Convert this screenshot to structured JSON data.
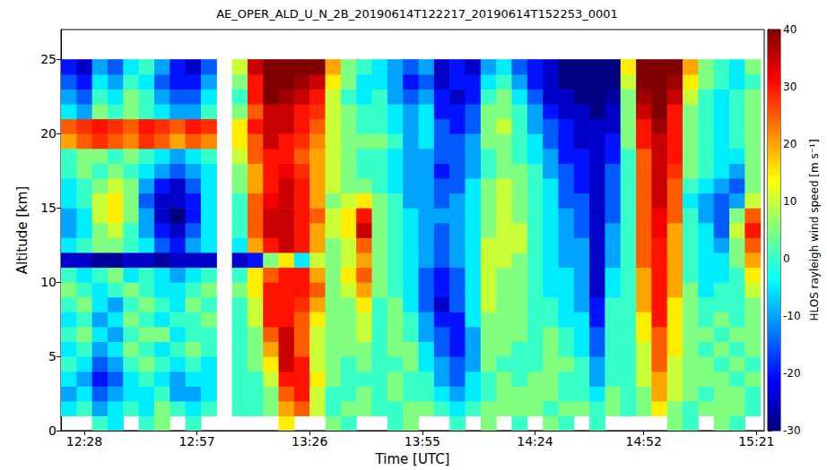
{
  "chart_data": {
    "type": "heatmap",
    "title": "AE_OPER_ALD_U_N_2B_20190614T122217_20190614T152253_0001",
    "x_label": "Time [UTC]",
    "y_label": "Altitude [km]",
    "xlim": [
      742,
      923
    ],
    "ylim": [
      0,
      27
    ],
    "xticks": [
      {
        "value": 748,
        "label": "12:28"
      },
      {
        "value": 777,
        "label": "12:57"
      },
      {
        "value": 806,
        "label": "13:26"
      },
      {
        "value": 835,
        "label": "13:55"
      },
      {
        "value": 864,
        "label": "14:24"
      },
      {
        "value": 892,
        "label": "14:52"
      },
      {
        "value": 921,
        "label": "15:21"
      }
    ],
    "yticks": [
      0,
      5,
      10,
      15,
      20,
      25
    ],
    "grid": false,
    "x_edges": [
      742,
      746,
      750,
      754,
      758,
      762,
      766,
      770,
      774,
      778,
      782,
      786,
      790,
      794,
      798,
      802,
      806,
      810,
      814,
      818,
      822,
      826,
      830,
      834,
      838,
      842,
      846,
      850,
      854,
      858,
      862,
      866,
      870,
      874,
      878,
      882,
      886,
      890,
      894,
      898,
      902,
      906,
      910,
      914,
      918,
      922
    ],
    "y_edges": [
      0,
      1,
      2,
      3,
      4,
      5,
      6,
      7,
      8,
      9,
      10,
      11,
      12,
      13,
      14,
      15,
      16,
      17,
      18,
      19,
      20,
      21,
      22,
      23,
      24,
      25
    ],
    "cells": [
      [
        null,
        null,
        0,
        -5,
        null,
        0,
        5,
        null,
        0,
        null,
        null,
        null,
        null,
        null,
        15,
        null,
        null,
        5,
        0,
        null,
        null,
        0,
        5,
        null,
        null,
        0,
        null,
        5,
        null,
        0,
        null,
        5,
        0,
        null,
        0,
        null,
        null,
        null,
        null,
        5,
        0,
        null,
        5,
        0,
        null
      ],
      [
        -5,
        0,
        -10,
        -5,
        0,
        -5,
        5,
        0,
        -5,
        0,
        null,
        0,
        0,
        5,
        20,
        25,
        10,
        0,
        5,
        5,
        0,
        0,
        5,
        5,
        0,
        -5,
        0,
        5,
        5,
        5,
        5,
        0,
        5,
        5,
        0,
        5,
        0,
        5,
        15,
        5,
        0,
        5,
        5,
        5,
        0
      ],
      [
        -10,
        -5,
        -15,
        -10,
        -5,
        -5,
        0,
        -10,
        -10,
        -5,
        null,
        0,
        0,
        5,
        25,
        30,
        10,
        0,
        0,
        5,
        0,
        5,
        0,
        0,
        -5,
        -10,
        -5,
        0,
        5,
        5,
        5,
        5,
        0,
        0,
        -5,
        5,
        0,
        5,
        20,
        10,
        5,
        0,
        5,
        5,
        0
      ],
      [
        -5,
        -10,
        -20,
        -15,
        -5,
        0,
        -5,
        -10,
        -5,
        -5,
        null,
        0,
        0,
        10,
        30,
        30,
        15,
        5,
        0,
        0,
        0,
        5,
        0,
        0,
        -10,
        -15,
        -5,
        0,
        5,
        0,
        5,
        5,
        0,
        0,
        -10,
        0,
        0,
        10,
        20,
        10,
        5,
        5,
        5,
        0,
        5
      ],
      [
        0,
        -5,
        -15,
        -10,
        0,
        5,
        0,
        -5,
        0,
        -5,
        null,
        0,
        5,
        15,
        35,
        30,
        10,
        5,
        0,
        5,
        0,
        0,
        5,
        -5,
        -10,
        -15,
        -10,
        5,
        0,
        0,
        0,
        5,
        5,
        0,
        -10,
        0,
        0,
        10,
        25,
        10,
        5,
        5,
        0,
        5,
        0
      ],
      [
        -5,
        0,
        -10,
        -5,
        5,
        0,
        -5,
        0,
        5,
        0,
        null,
        0,
        5,
        20,
        35,
        25,
        10,
        5,
        5,
        5,
        0,
        5,
        5,
        -5,
        -15,
        -20,
        -10,
        5,
        5,
        0,
        0,
        5,
        0,
        -5,
        -15,
        0,
        0,
        10,
        25,
        15,
        5,
        0,
        5,
        0,
        5
      ],
      [
        0,
        5,
        -5,
        -10,
        0,
        5,
        5,
        -5,
        0,
        0,
        null,
        0,
        5,
        25,
        35,
        25,
        10,
        5,
        5,
        10,
        0,
        5,
        0,
        -10,
        -15,
        -20,
        -10,
        5,
        5,
        5,
        0,
        5,
        0,
        -5,
        -15,
        0,
        0,
        15,
        25,
        15,
        5,
        5,
        0,
        5,
        5
      ],
      [
        -5,
        0,
        -10,
        -5,
        5,
        0,
        -5,
        0,
        0,
        5,
        null,
        0,
        10,
        30,
        30,
        25,
        15,
        5,
        5,
        10,
        0,
        5,
        0,
        -10,
        -20,
        -20,
        -5,
        5,
        5,
        5,
        0,
        0,
        -5,
        -5,
        -20,
        0,
        0,
        15,
        30,
        15,
        5,
        0,
        5,
        0,
        5
      ],
      [
        0,
        5,
        -5,
        -10,
        0,
        5,
        0,
        -5,
        5,
        0,
        null,
        0,
        10,
        30,
        30,
        28,
        20,
        5,
        5,
        15,
        0,
        5,
        -5,
        -15,
        -25,
        -15,
        -5,
        10,
        5,
        5,
        0,
        0,
        -5,
        -10,
        -20,
        0,
        0,
        20,
        30,
        15,
        5,
        0,
        0,
        0,
        5
      ],
      [
        5,
        0,
        -5,
        0,
        5,
        0,
        -5,
        -5,
        0,
        5,
        null,
        5,
        15,
        30,
        30,
        30,
        25,
        5,
        10,
        20,
        5,
        0,
        -5,
        -15,
        -20,
        -15,
        -5,
        10,
        5,
        5,
        0,
        -5,
        -5,
        -10,
        -25,
        -5,
        0,
        20,
        30,
        20,
        5,
        -5,
        0,
        0,
        10
      ],
      [
        0,
        -5,
        0,
        5,
        -5,
        0,
        -5,
        -10,
        -5,
        0,
        null,
        0,
        15,
        25,
        30,
        30,
        20,
        5,
        15,
        25,
        5,
        0,
        -5,
        -15,
        -20,
        -15,
        -5,
        10,
        5,
        5,
        0,
        -5,
        -5,
        -10,
        -25,
        -5,
        0,
        20,
        30,
        20,
        0,
        -5,
        -5,
        0,
        15
      ],
      [
        -25,
        -25,
        -28,
        -28,
        -25,
        -25,
        -28,
        -25,
        -25,
        -25,
        null,
        -25,
        -20,
        5,
        15,
        -5,
        10,
        5,
        10,
        20,
        5,
        0,
        -5,
        -10,
        -15,
        -10,
        -5,
        10,
        10,
        5,
        0,
        -5,
        -10,
        -10,
        -25,
        -10,
        0,
        25,
        30,
        20,
        0,
        -5,
        -5,
        5,
        20
      ],
      [
        -5,
        0,
        5,
        5,
        0,
        -5,
        -15,
        -20,
        -10,
        -5,
        null,
        -5,
        20,
        30,
        35,
        30,
        20,
        5,
        10,
        25,
        5,
        0,
        -5,
        -10,
        -15,
        -10,
        -5,
        10,
        10,
        10,
        0,
        -5,
        -10,
        -10,
        -25,
        -10,
        0,
        25,
        30,
        20,
        0,
        -5,
        -10,
        5,
        25
      ],
      [
        -10,
        -5,
        5,
        10,
        0,
        -10,
        -20,
        -25,
        -15,
        -5,
        null,
        0,
        25,
        35,
        35,
        30,
        20,
        10,
        15,
        35,
        5,
        0,
        -5,
        -10,
        -15,
        -10,
        -5,
        5,
        10,
        10,
        0,
        -5,
        -10,
        -15,
        -25,
        -10,
        0,
        25,
        32,
        20,
        0,
        -5,
        -15,
        10,
        30
      ],
      [
        -10,
        -5,
        10,
        15,
        5,
        -10,
        -25,
        -30,
        -20,
        -5,
        null,
        0,
        25,
        35,
        35,
        30,
        25,
        10,
        15,
        30,
        5,
        0,
        -5,
        -10,
        -10,
        -10,
        -5,
        5,
        10,
        5,
        0,
        -5,
        -10,
        -15,
        -25,
        -15,
        0,
        25,
        32,
        25,
        0,
        -10,
        -15,
        5,
        25
      ],
      [
        -5,
        0,
        10,
        15,
        5,
        -15,
        -25,
        -25,
        -20,
        -5,
        null,
        0,
        25,
        32,
        35,
        30,
        20,
        5,
        10,
        15,
        5,
        0,
        -10,
        -10,
        -15,
        -10,
        -5,
        5,
        10,
        5,
        0,
        -5,
        -15,
        -15,
        -25,
        -15,
        0,
        25,
        35,
        25,
        -5,
        -10,
        -15,
        -10,
        10
      ],
      [
        -5,
        0,
        5,
        10,
        5,
        -10,
        -20,
        -25,
        -15,
        -5,
        null,
        5,
        20,
        30,
        35,
        30,
        20,
        10,
        5,
        5,
        0,
        -5,
        -10,
        -10,
        -15,
        -15,
        -5,
        5,
        10,
        5,
        0,
        -5,
        -15,
        -20,
        -25,
        -15,
        0,
        25,
        35,
        25,
        0,
        -5,
        -10,
        -15,
        5
      ],
      [
        0,
        5,
        0,
        5,
        0,
        -5,
        -10,
        -15,
        -10,
        -5,
        null,
        5,
        20,
        30,
        32,
        28,
        20,
        10,
        5,
        0,
        0,
        -5,
        -10,
        -10,
        -20,
        -15,
        -10,
        0,
        5,
        5,
        0,
        -10,
        -15,
        -20,
        -25,
        -15,
        0,
        25,
        35,
        28,
        5,
        0,
        -5,
        -10,
        5
      ],
      [
        0,
        5,
        5,
        0,
        5,
        0,
        -5,
        -10,
        -5,
        0,
        null,
        10,
        25,
        30,
        30,
        25,
        20,
        10,
        5,
        0,
        0,
        -5,
        -10,
        -10,
        -15,
        -15,
        -10,
        0,
        5,
        0,
        -5,
        -10,
        -20,
        -20,
        -25,
        -20,
        0,
        25,
        35,
        30,
        5,
        0,
        -5,
        -5,
        5
      ],
      [
        20,
        25,
        28,
        25,
        22,
        28,
        25,
        20,
        25,
        22,
        null,
        15,
        25,
        35,
        30,
        28,
        22,
        10,
        5,
        5,
        5,
        0,
        -10,
        -5,
        -15,
        -15,
        -10,
        5,
        5,
        0,
        -5,
        -15,
        -20,
        -25,
        -25,
        -20,
        5,
        30,
        35,
        30,
        5,
        0,
        -5,
        0,
        5
      ],
      [
        25,
        28,
        30,
        28,
        25,
        30,
        28,
        25,
        30,
        28,
        null,
        15,
        30,
        35,
        35,
        30,
        25,
        10,
        5,
        0,
        0,
        -5,
        -10,
        -5,
        -15,
        -20,
        -15,
        5,
        10,
        0,
        -10,
        -15,
        -20,
        -25,
        -25,
        -25,
        5,
        30,
        38,
        30,
        5,
        0,
        -5,
        0,
        5
      ],
      [
        -5,
        -10,
        5,
        0,
        5,
        0,
        -5,
        -10,
        -10,
        0,
        null,
        5,
        25,
        35,
        35,
        30,
        28,
        10,
        5,
        0,
        0,
        -5,
        -10,
        -5,
        -20,
        -20,
        -15,
        5,
        5,
        0,
        -10,
        -20,
        -25,
        -25,
        -30,
        -25,
        5,
        35,
        40,
        30,
        5,
        0,
        -5,
        0,
        5
      ],
      [
        -10,
        -15,
        0,
        -5,
        5,
        0,
        -10,
        -15,
        -15,
        -5,
        null,
        0,
        30,
        40,
        38,
        35,
        30,
        10,
        0,
        -5,
        0,
        -10,
        -15,
        -10,
        -20,
        -25,
        -20,
        0,
        5,
        -5,
        -15,
        -25,
        -25,
        -30,
        -30,
        -28,
        5,
        38,
        40,
        35,
        10,
        0,
        -5,
        0,
        5
      ],
      [
        -15,
        -20,
        -5,
        -10,
        0,
        -5,
        -15,
        -20,
        -20,
        -10,
        null,
        5,
        30,
        40,
        40,
        38,
        35,
        15,
        5,
        -5,
        -5,
        -10,
        -20,
        -15,
        -25,
        -20,
        -20,
        -5,
        0,
        -10,
        -20,
        -25,
        -30,
        -30,
        -30,
        -30,
        10,
        40,
        40,
        38,
        15,
        5,
        0,
        -5,
        0
      ],
      [
        -20,
        -25,
        -10,
        -15,
        -5,
        0,
        -10,
        -20,
        -25,
        -15,
        null,
        10,
        35,
        40,
        40,
        40,
        40,
        20,
        5,
        0,
        -5,
        -10,
        -15,
        -10,
        -25,
        -20,
        -25,
        -10,
        -5,
        -15,
        -20,
        -25,
        -30,
        -30,
        -30,
        -30,
        15,
        40,
        40,
        40,
        20,
        5,
        0,
        -5,
        5
      ]
    ],
    "colorbar": {
      "label": "HLOS rayleigh wind speed [m s⁻¹]",
      "range": [
        -30,
        40
      ],
      "ticks": [
        -30,
        -20,
        -10,
        0,
        10,
        20,
        30,
        40
      ]
    }
  }
}
